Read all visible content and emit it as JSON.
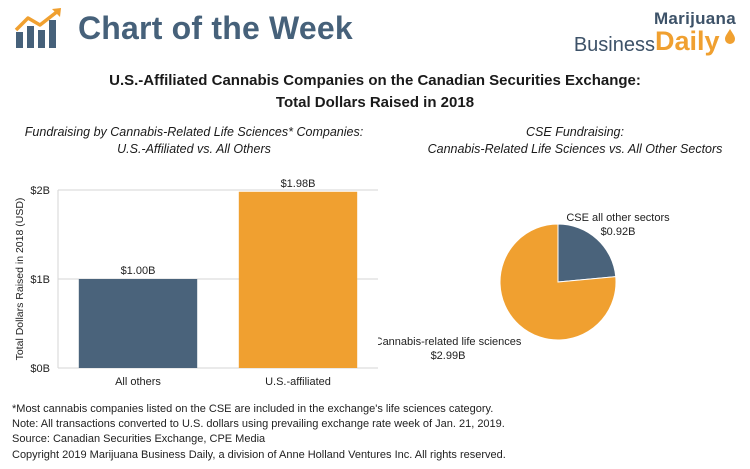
{
  "header": {
    "brand_title": "Chart of the Week",
    "publisher_line1": "Marijuana",
    "publisher_line2a": "Business",
    "publisher_line2b": "Daily"
  },
  "title": {
    "line1": "U.S.-Affiliated Cannabis Companies on the Canadian Securities Exchange:",
    "line2": "Total Dollars Raised in 2018"
  },
  "left_subtitle": {
    "line1": "Fundraising by Cannabis-Related Life Sciences* Companies:",
    "line2": "U.S.-Affiliated vs. All Others"
  },
  "right_subtitle": {
    "line1": "CSE Fundraising:",
    "line2": "Cannabis-Related Life Sciences vs. All Other Sectors"
  },
  "colors": {
    "slate": "#4a637b",
    "orange": "#f0a030",
    "grid": "#d6d6d6"
  },
  "chart_data": [
    {
      "type": "bar",
      "title": "Fundraising by Cannabis-Related Life Sciences* Companies: U.S.-Affiliated vs. All Others",
      "categories": [
        "All others",
        "U.S.-affiliated"
      ],
      "values": [
        1.0,
        1.98
      ],
      "value_labels": [
        "$1.00B",
        "$1.98B"
      ],
      "bar_colors": [
        "#4a637b",
        "#f0a030"
      ],
      "xlabel": "",
      "ylabel": "Total Dollars Raised in 2018 (USD)",
      "ylim": [
        0,
        2
      ],
      "yticks": [
        0,
        1,
        2
      ],
      "ytick_labels": [
        "$0B",
        "$1B",
        "$2B"
      ],
      "grid": true
    },
    {
      "type": "pie",
      "title": "CSE Fundraising: Cannabis-Related Life Sciences vs. All Other Sectors",
      "slices": [
        {
          "label": "CSE all other sectors",
          "value": 0.92,
          "value_label": "$0.92B",
          "color": "#4a637b"
        },
        {
          "label": "Cannabis-related life sciences",
          "value": 2.99,
          "value_label": "$2.99B",
          "color": "#f0a030"
        }
      ]
    }
  ],
  "footnotes": [
    "*Most cannabis companies listed on the CSE are included in the exchange's life sciences category.",
    "Note: All transactions converted to U.S. dollars using prevailing exchange rate week of Jan. 21, 2019.",
    "Source: Canadian Securities Exchange, CPE Media",
    "Copyright 2019 Marijuana Business Daily, a division of Anne Holland Ventures Inc. All rights reserved."
  ]
}
